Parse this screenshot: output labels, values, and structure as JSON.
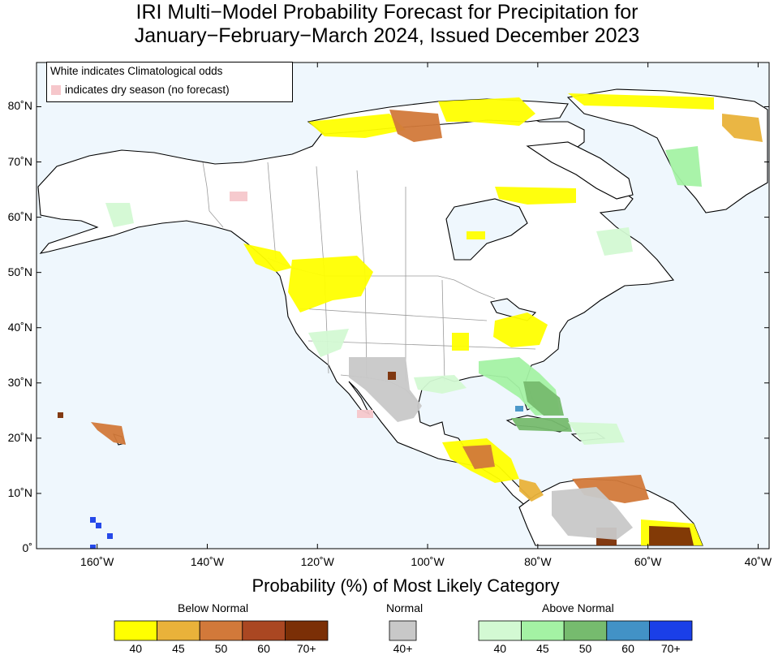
{
  "title": {
    "line1": "IRI Multi−Model Probability Forecast for Precipitation for",
    "line2": "January−February−March 2024, Issued December 2023"
  },
  "map_legend": {
    "line1": "White indicates Climatological odds",
    "line2": "indicates dry season (no forecast)",
    "dry_color": "#f6c7cb"
  },
  "axes": {
    "lat_labels": [
      "80˚N",
      "70˚N",
      "60˚N",
      "50˚N",
      "40˚N",
      "30˚N",
      "20˚N",
      "10˚N",
      "0˚"
    ],
    "lon_labels": [
      "160˚W",
      "140˚W",
      "120˚W",
      "100˚W",
      "80˚W",
      "60˚W",
      "40˚W"
    ],
    "lat_values": [
      80,
      70,
      60,
      50,
      40,
      30,
      20,
      10,
      0
    ],
    "lon_values": [
      -160,
      -140,
      -120,
      -100,
      -80,
      -60,
      -40
    ],
    "lon_range": [
      -171,
      -38
    ],
    "lat_range": [
      0,
      88
    ]
  },
  "colorbar": {
    "title": "Probability (%) of Most Likely Category",
    "below": {
      "label": "Below Normal",
      "colors": [
        "#ffff00",
        "#e9b23a",
        "#d2793a",
        "#aa4722",
        "#7b2f06"
      ],
      "ticks": [
        "40",
        "45",
        "50",
        "60",
        "70+"
      ]
    },
    "normal": {
      "label": "Normal",
      "colors": [
        "#c8c8c8"
      ],
      "ticks": [
        "40+"
      ]
    },
    "above": {
      "label": "Above Normal",
      "colors": [
        "#d3f9d3",
        "#a4f2a4",
        "#76bb6e",
        "#4292c6",
        "#1a3fe8"
      ],
      "ticks": [
        "40",
        "45",
        "50",
        "60",
        "70+"
      ]
    }
  },
  "colors": {
    "ocean": "#eff7fd",
    "land": "#ffffff",
    "coast": "#000000",
    "border": "#9a9a9a"
  }
}
